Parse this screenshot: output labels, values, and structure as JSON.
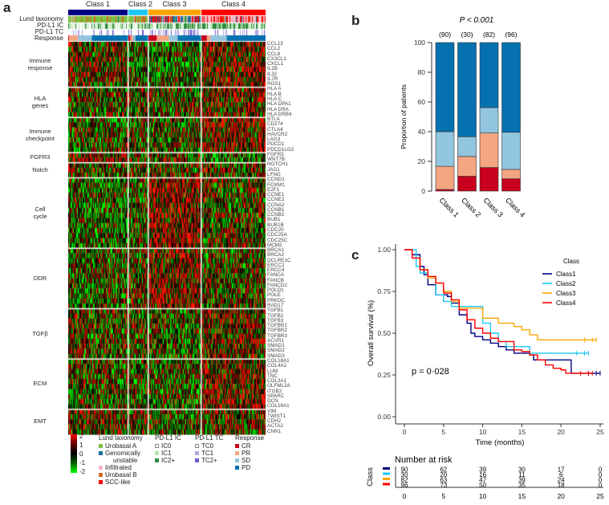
{
  "panel_labels": {
    "a": "a",
    "b": "b",
    "c": "c"
  },
  "heatmap": {
    "classes": [
      {
        "name": "Class 1",
        "color": "#000080"
      },
      {
        "name": "Class 2",
        "color": "#1ec8f5"
      },
      {
        "name": "Class 3",
        "color": "#ffa500"
      },
      {
        "name": "Class 4",
        "color": "#ff0000"
      }
    ],
    "tracks": [
      "Lund taxonomy",
      "PD-L1 IC",
      "PD-L1 TC",
      "Response"
    ],
    "groups": [
      {
        "name": "Immune response",
        "genes": [
          "CCL13",
          "CCL2",
          "CCL8",
          "CX3CL1",
          "CXCL1",
          "IL1B",
          "IL32",
          "IL7R",
          "RGS1"
        ]
      },
      {
        "name": "HLA genes",
        "genes": [
          "HLA A",
          "HLA B",
          "HLA C",
          "HLA DPA1",
          "HLA DRA",
          "HLA DRB4"
        ]
      },
      {
        "name": "Immune checkpoint",
        "genes": [
          "BTLA",
          "CD274",
          "CTLA4",
          "HAVCR2",
          "LAG3",
          "PDCD1",
          "PDCD1LG2"
        ]
      },
      {
        "name": "FGFR3",
        "genes": [
          "FGFR3",
          "WNT7B"
        ]
      },
      {
        "name": "Notch",
        "genes": [
          "NOTCH1",
          "JAG1",
          "LFNG"
        ]
      },
      {
        "name": "Cell cycle",
        "genes": [
          "CCND1",
          "FOXM1",
          "E2F1",
          "CCNE1",
          "CCNE2",
          "CCNA2",
          "CCNB1",
          "CCNB2",
          "BUB1",
          "BUB1B",
          "CDC20",
          "CDC25A",
          "CDC25C",
          "MCM2"
        ]
      },
      {
        "name": "DDR",
        "genes": [
          "BRCA1",
          "BRCA2",
          "DCLRE1C",
          "ERCC2",
          "ERCC4",
          "FANCA",
          "FANCB",
          "FANCD2",
          "POLD1",
          "POLE",
          "PRKDC",
          "RAD17"
        ]
      },
      {
        "name": "TGFβ",
        "genes": [
          "TGFB1",
          "TGFB2",
          "TGFB3",
          "TGFBR1",
          "TGFBR2",
          "TGFBR3",
          "ACVR1",
          "SMAD1",
          "SMAD2",
          "SMAD3"
        ]
      },
      {
        "name": "ECM",
        "genes": [
          "COL18A1",
          "COL4A1",
          "LUM",
          "TNC",
          "COL3A1",
          "OLFML2A",
          "ITGB2",
          "SPARC",
          "DCN",
          "COL16A1"
        ]
      },
      {
        "name": "EMT",
        "genes": [
          "VIM",
          "TWIST1",
          "CDH2",
          "ACTA2",
          "CNN1"
        ]
      }
    ],
    "scale_ticks": [
      "2",
      "1",
      "0",
      "-1",
      "-2"
    ],
    "legend": {
      "lund": {
        "title": "Lund taxonomy",
        "items": [
          {
            "label": "Urobasal A",
            "color": "#7ac143"
          },
          {
            "label": "Genomically",
            "label2": "unstable",
            "color": "#1b6f9a"
          },
          {
            "label": "Infiltrated",
            "color": "#f7b6c2"
          },
          {
            "label": "Urobasal B",
            "color": "#d2691e"
          },
          {
            "label": "SCC-like",
            "color": "#ff0000"
          }
        ]
      },
      "ic": {
        "title": "PD-L1 IC",
        "items": [
          {
            "label": "IC0",
            "color": "#ffffff"
          },
          {
            "label": "IC1",
            "color": "#b8e3b0"
          },
          {
            "label": "IC2+",
            "color": "#2e8b3e"
          }
        ]
      },
      "tc": {
        "title": "PD-L1 TC",
        "items": [
          {
            "label": "TC0",
            "color": "#ffffff"
          },
          {
            "label": "TC1",
            "color": "#b0a8e0"
          },
          {
            "label": "TC2+",
            "color": "#6a5acd"
          }
        ]
      },
      "resp": {
        "title": "Response",
        "items": [
          {
            "label": "CR",
            "color": "#c8001e"
          },
          {
            "label": "PR",
            "color": "#f4a582"
          },
          {
            "label": "SD",
            "color": "#92c5de"
          },
          {
            "label": "PD",
            "color": "#0571b0"
          }
        ]
      }
    }
  },
  "chart_data": [
    {
      "type": "bar",
      "stacked": true,
      "title": "P < 0.001",
      "ylabel": "Proportion of patients",
      "ylim": [
        0,
        100
      ],
      "yticks": [
        "0",
        "20",
        "40",
        "60",
        "80",
        "100"
      ],
      "categories": [
        "Class 1",
        "Class 2",
        "Class 3",
        "Class 4"
      ],
      "counts": [
        "(90)",
        "(30)",
        "(82)",
        "(96)"
      ],
      "series": [
        {
          "name": "CR",
          "color": "#c8001e",
          "values": [
            1.1,
            10,
            15.9,
            8.3
          ]
        },
        {
          "name": "PR",
          "color": "#f4a582",
          "values": [
            15.6,
            13.3,
            23.2,
            6.3
          ]
        },
        {
          "name": "SD",
          "color": "#92c5de",
          "values": [
            23.3,
            13.3,
            17.1,
            25
          ]
        },
        {
          "name": "PD",
          "color": "#0571b0",
          "values": [
            60,
            63.4,
            43.8,
            60.4
          ]
        }
      ]
    },
    {
      "type": "line",
      "subtype": "kaplan-meier",
      "xlabel": "Time (months)",
      "ylabel": "Overall survival (%)",
      "xlim": [
        0,
        25
      ],
      "ylim": [
        0,
        1
      ],
      "xticks": [
        "0",
        "5",
        "10",
        "15",
        "20",
        "25"
      ],
      "yticks": [
        "0.00",
        "0.25",
        "0.50",
        "0.75",
        "1.00"
      ],
      "legend_title": "Class",
      "legend_position": "top-right",
      "annotation": "p = 0·028",
      "series": [
        {
          "name": "Class1",
          "color": "#000080",
          "x": [
            0,
            1,
            2,
            2.5,
            3,
            4,
            5.5,
            6,
            7,
            8,
            8.5,
            9,
            10,
            11,
            12,
            13,
            14,
            16,
            16.5,
            21,
            21.3,
            25
          ],
          "y": [
            1,
            0.97,
            0.9,
            0.85,
            0.79,
            0.73,
            0.72,
            0.68,
            0.61,
            0.56,
            0.5,
            0.48,
            0.46,
            0.44,
            0.42,
            0.4,
            0.38,
            0.37,
            0.34,
            0.34,
            0.26,
            0.26
          ]
        },
        {
          "name": "Class2",
          "color": "#1ec8f5",
          "x": [
            0,
            1.5,
            2,
            3,
            4,
            5,
            6,
            8,
            10,
            11,
            12,
            13,
            15,
            16,
            23.5
          ],
          "y": [
            1,
            0.9,
            0.86,
            0.83,
            0.73,
            0.69,
            0.66,
            0.66,
            0.56,
            0.5,
            0.45,
            0.42,
            0.42,
            0.38,
            0.38
          ]
        },
        {
          "name": "Class3",
          "color": "#ffa500",
          "x": [
            0,
            1,
            2,
            3,
            4,
            5,
            6,
            7,
            8,
            10,
            12,
            14,
            15,
            16,
            17,
            24.5
          ],
          "y": [
            1,
            0.95,
            0.88,
            0.83,
            0.8,
            0.75,
            0.69,
            0.65,
            0.65,
            0.59,
            0.56,
            0.54,
            0.52,
            0.49,
            0.46,
            0.46
          ]
        },
        {
          "name": "Class4",
          "color": "#ff0000",
          "x": [
            0,
            1,
            2,
            3,
            4,
            5,
            6,
            7,
            8,
            9,
            10,
            11,
            12,
            14,
            15,
            16,
            17,
            18,
            19,
            20,
            20.6,
            24
          ],
          "y": [
            1,
            0.95,
            0.88,
            0.84,
            0.8,
            0.74,
            0.7,
            0.64,
            0.58,
            0.53,
            0.5,
            0.47,
            0.45,
            0.4,
            0.39,
            0.37,
            0.34,
            0.31,
            0.29,
            0.28,
            0.26,
            0.26
          ]
        }
      ],
      "risk_table": {
        "title": "Number at risk",
        "ylabel": "Class",
        "times": [
          "0",
          "5",
          "10",
          "15",
          "20",
          "25"
        ],
        "rows": [
          [
            "90",
            "62",
            "39",
            "30",
            "17",
            "0"
          ],
          [
            "30",
            "20",
            "16",
            "11",
            "6",
            "0"
          ],
          [
            "82",
            "63",
            "47",
            "39",
            "24",
            "0"
          ],
          [
            "96",
            "73",
            "50",
            "35",
            "18",
            "0"
          ]
        ]
      }
    }
  ]
}
